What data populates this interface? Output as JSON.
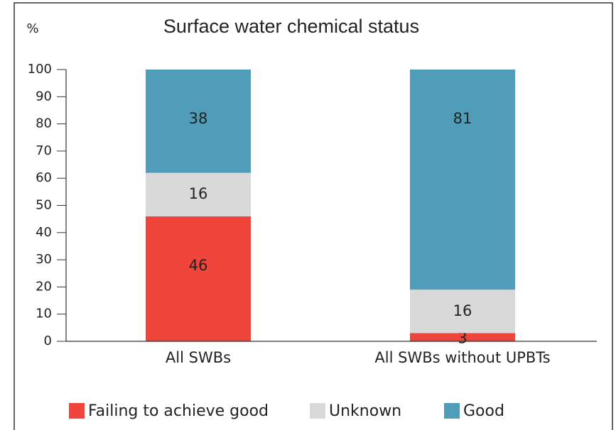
{
  "chart_data": {
    "type": "stacked_bar",
    "title": "Surface water chemical status",
    "y_label": "%",
    "categories": [
      "All SWBs",
      "All SWBs without UPBTs"
    ],
    "series": [
      {
        "name": "Failing to achieve good",
        "color": "#f0453a",
        "values": [
          46,
          3
        ]
      },
      {
        "name": "Unknown",
        "color": "#d9d9d9",
        "values": [
          16,
          16
        ]
      },
      {
        "name": "Good",
        "color": "#4f9db8",
        "values": [
          38,
          81
        ]
      }
    ],
    "ylim": [
      0,
      100
    ],
    "yticks": [
      0,
      10,
      20,
      30,
      40,
      50,
      60,
      70,
      80,
      90,
      100
    ],
    "legend": "bottom"
  }
}
